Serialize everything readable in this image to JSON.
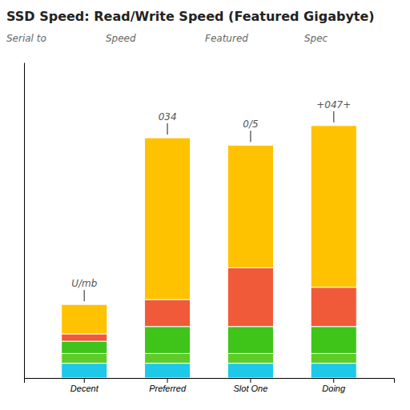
{
  "chart_data": {
    "type": "bar",
    "stacked": true,
    "title": "SSD Speed: Read/Write Speed (Featured Gigabyte)",
    "subtitle": [
      "Serial to",
      "Speed",
      "Featured",
      "Spec"
    ],
    "categories": [
      "Decent",
      "Preferred",
      "Slot One",
      "Doing"
    ],
    "series": [
      {
        "color": "#1ec8e8",
        "values": [
          30,
          30,
          30,
          30
        ]
      },
      {
        "color": "#5dcc2a",
        "values": [
          20,
          20,
          20,
          20
        ]
      },
      {
        "color": "#3fc41a",
        "values": [
          25,
          55,
          55,
          55
        ]
      },
      {
        "color": "#f05a38",
        "values": [
          15,
          55,
          120,
          80
        ]
      },
      {
        "color": "#ffc200",
        "values": [
          60,
          330,
          250,
          330
        ]
      }
    ],
    "annotations": [
      {
        "category": "Decent",
        "text": "U/mb"
      },
      {
        "category": "Preferred",
        "text": "034"
      },
      {
        "category": "Slot One",
        "text": "0/5"
      },
      {
        "category": "Doing",
        "text": "+047+"
      }
    ],
    "ylim": [
      0,
      643.75
    ],
    "tick_labels": "x",
    "grid": false
  }
}
